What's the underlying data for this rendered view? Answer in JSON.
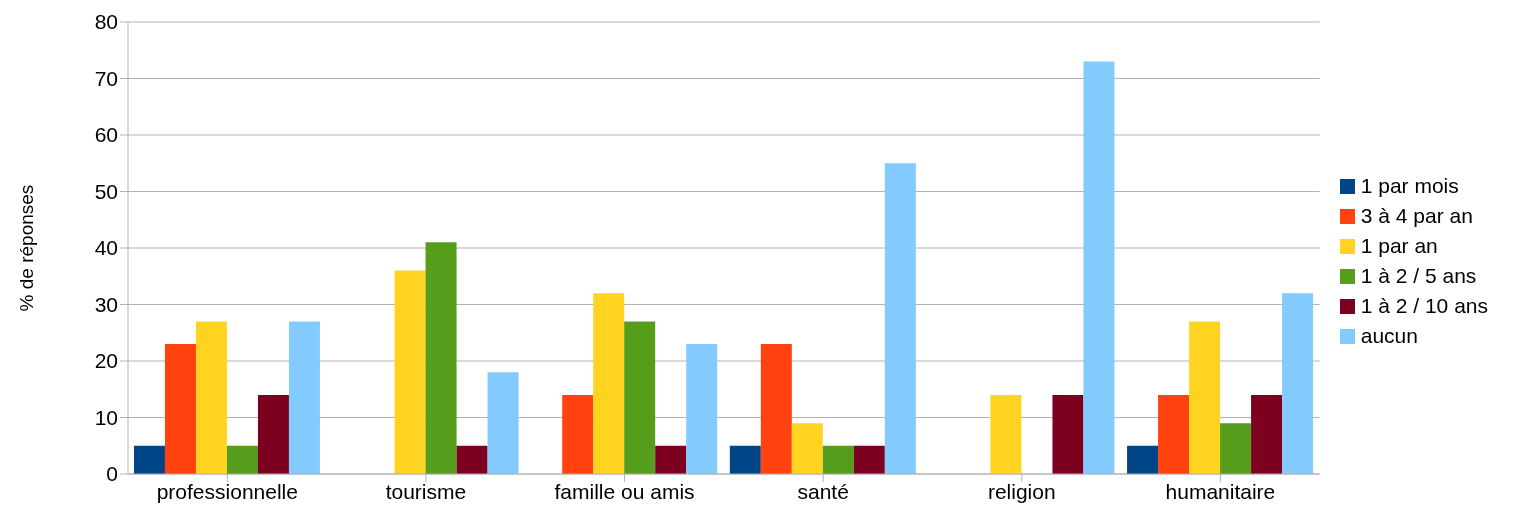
{
  "chart_data": {
    "type": "bar",
    "ylabel": "% de réponses",
    "categories": [
      "professionnelle",
      "tourisme",
      "famille ou amis",
      "santé",
      "religion",
      "humanitaire"
    ],
    "series": [
      {
        "name": "1 par mois",
        "color": "#004586",
        "values": [
          5,
          0,
          0,
          5,
          0,
          5
        ]
      },
      {
        "name": "3 à 4 par an",
        "color": "#ff420e",
        "values": [
          23,
          0,
          14,
          23,
          0,
          14
        ]
      },
      {
        "name": "1 par an",
        "color": "#ffd320",
        "values": [
          27,
          36,
          32,
          9,
          14,
          27
        ]
      },
      {
        "name": "1 à 2 / 5 ans",
        "color": "#579d1c",
        "values": [
          5,
          41,
          27,
          5,
          0,
          9
        ]
      },
      {
        "name": "1 à 2 / 10 ans",
        "color": "#7e0021",
        "values": [
          14,
          5,
          5,
          5,
          14,
          14
        ]
      },
      {
        "name": "aucun",
        "color": "#83caff",
        "values": [
          27,
          18,
          23,
          55,
          73,
          32
        ]
      }
    ],
    "ylim": [
      0,
      80
    ],
    "yticks": [
      0,
      10,
      20,
      30,
      40,
      50,
      60,
      70,
      80
    ],
    "grid": "y",
    "legend": "right"
  }
}
